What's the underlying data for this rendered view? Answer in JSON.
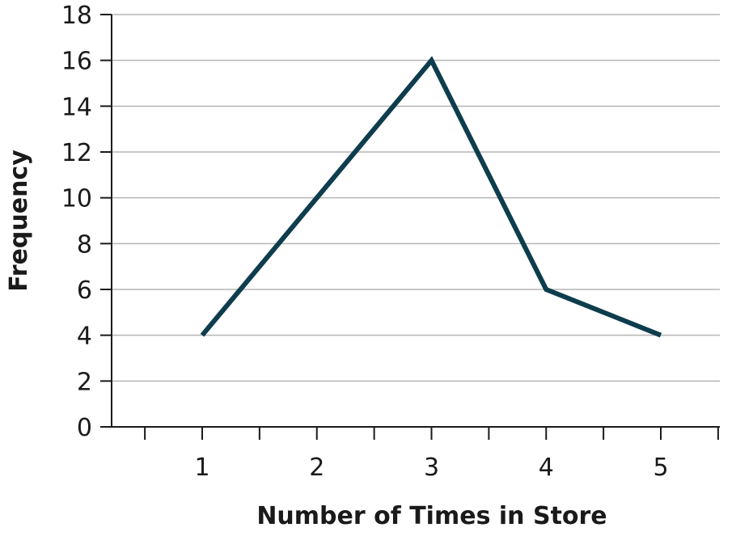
{
  "chart_data": {
    "type": "line",
    "title": "",
    "xlabel": "Number of Times in Store",
    "ylabel": "Frequency",
    "x": [
      1,
      2,
      3,
      4,
      5
    ],
    "series": [
      {
        "values": [
          4,
          10,
          16,
          6,
          4
        ],
        "color": "#0e3d4d"
      }
    ],
    "xlim": [
      0.5,
      5.5
    ],
    "ylim": [
      0,
      18
    ],
    "yticks": [
      0,
      2,
      4,
      6,
      8,
      10,
      12,
      14,
      16,
      18
    ],
    "xticks": [
      1,
      2,
      3,
      4,
      5
    ],
    "grid": "horizontal",
    "legend": "none"
  }
}
